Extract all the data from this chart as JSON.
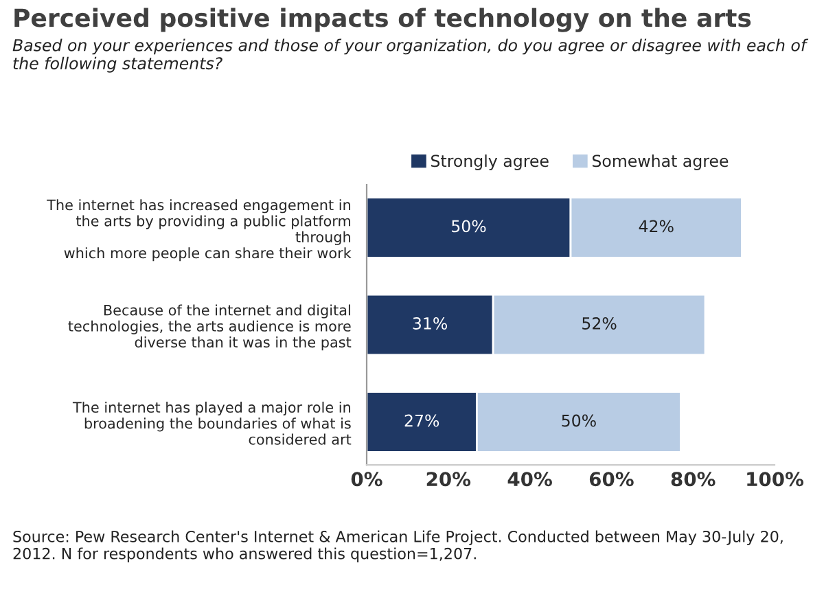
{
  "chart_data": {
    "type": "bar",
    "orientation": "horizontal",
    "stacked": true,
    "title": "Perceived positive impacts of technology on the arts",
    "subtitle": "Based on your experiences and those of your organization, do you agree or disagree with each of the following statements?",
    "categories": [
      "The internet has increased engagement in\nthe arts by providing a public platform\nthrough\nwhich more people can share their work",
      "Because of the internet and digital\ntechnologies, the arts audience is more\ndiverse than it was in the past",
      "The internet has played a major role in\nbroadening the boundaries of what is\nconsidered art"
    ],
    "series": [
      {
        "name": "Strongly agree",
        "color": "#1f3864",
        "values": [
          50,
          31,
          27
        ],
        "value_labels": [
          "50%",
          "31%",
          "27%"
        ]
      },
      {
        "name": "Somewhat agree",
        "color": "#b8cce4",
        "values": [
          42,
          52,
          50
        ],
        "value_labels": [
          "42%",
          "52%",
          "50%"
        ]
      }
    ],
    "xlim": [
      0,
      100
    ],
    "xticks": [
      {
        "value": 0,
        "label": "0%"
      },
      {
        "value": 20,
        "label": "20%"
      },
      {
        "value": 40,
        "label": "40%"
      },
      {
        "value": 60,
        "label": "60%"
      },
      {
        "value": 80,
        "label": "80%"
      },
      {
        "value": 100,
        "label": "100%"
      }
    ],
    "grid": false,
    "legend": "top",
    "annotations": [
      "Source: Pew Research Center's Internet & American Life Project. Conducted between May 30-July 20, 2012. N for respondents who answered this question=1,207."
    ]
  }
}
